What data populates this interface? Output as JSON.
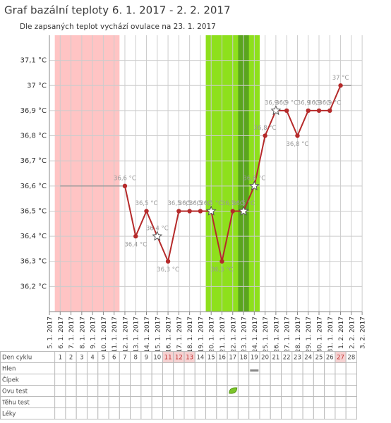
{
  "chart_data": {
    "type": "line",
    "title": "Graf bazální teploty 6. 1. 2017 - 2. 2. 2017",
    "subtitle": "Dle zapsaných teplot vychází ovulace na 23. 1. 2017",
    "categories": [
      "5. 1. 2017",
      "6. 1. 2017",
      "7. 1. 2017",
      "8. 1. 2017",
      "9. 1. 2017",
      "10. 1. 2017",
      "11. 1. 2017",
      "12. 1. 2017",
      "13. 1. 2017",
      "14. 1. 2017",
      "15. 1. 2017",
      "16. 1. 2017",
      "17. 1. 2017",
      "18. 1. 2017",
      "19. 1. 2017",
      "20. 1. 2017",
      "21. 1. 2017",
      "22. 1. 2017",
      "23. 1. 2017",
      "24. 1. 2017",
      "25. 1. 2017",
      "26. 1. 2017",
      "27. 1. 2017",
      "28. 1. 2017",
      "29. 1. 2017",
      "30. 1. 2017",
      "31. 1. 2017",
      "1. 2. 2017",
      "2. 2. 2017",
      "3. 2. 2017"
    ],
    "series": [
      {
        "color": "#999999",
        "values": [
          null,
          36.6,
          36.6,
          36.6,
          36.6,
          36.6,
          36.6,
          36.6,
          null,
          null,
          null,
          null,
          null,
          null,
          null,
          null,
          null,
          null,
          null,
          null,
          null,
          null,
          null,
          null,
          null,
          null,
          null,
          37.0,
          37.0,
          null
        ]
      },
      {
        "color": "#b52a2a",
        "values": [
          null,
          null,
          null,
          null,
          null,
          null,
          null,
          36.6,
          36.4,
          36.5,
          36.4,
          36.3,
          36.5,
          36.5,
          36.5,
          36.5,
          36.3,
          36.5,
          36.5,
          36.6,
          36.8,
          36.9,
          36.9,
          36.8,
          36.9,
          36.9,
          36.9,
          37.0,
          null,
          null
        ],
        "value_labels": [
          null,
          null,
          null,
          null,
          null,
          null,
          null,
          "36,6 °C",
          "36,4 °C",
          "36,5 °C",
          "36,4 °C",
          "36,3 °C",
          "36,5 °C",
          "36,5 °C",
          "36,5 °C",
          "36,5 °C",
          "36,3 °C",
          "36,5 °C",
          "36,5 °C",
          "36,6 °C",
          "36,8 °C",
          "36,9 °C",
          "36,9 °C",
          "36,8 °C",
          "36,9 °C",
          "36,9 °C",
          "36,9 °C",
          "37 °C",
          null,
          null
        ],
        "markers": [
          null,
          null,
          null,
          null,
          null,
          null,
          null,
          "circle",
          "circle",
          "circle",
          "star",
          "circle",
          "circle",
          "circle",
          "circle",
          "star",
          "circle",
          "circle",
          "star",
          "star",
          "circle",
          "star",
          "circle",
          "circle",
          "circle",
          "circle",
          "circle",
          "circle",
          null,
          null
        ]
      }
    ],
    "bands": [
      {
        "from": "6. 1. 2017",
        "to": "11. 1. 2017",
        "color": "#ffc4c4"
      },
      {
        "from": "20. 1. 2017",
        "to": "24. 1. 2017",
        "color": "#8ee01c"
      },
      {
        "from": "23. 1. 2017",
        "to": "23. 1. 2017",
        "color": "#5aa51e"
      }
    ],
    "ylim": [
      36.1,
      37.2
    ],
    "yticks": [
      {
        "value": 36.2,
        "label": "36,2 °C"
      },
      {
        "value": 36.3,
        "label": "36,3 °C"
      },
      {
        "value": 36.4,
        "label": "36,4 °C"
      },
      {
        "value": 36.5,
        "label": "36,5 °C"
      },
      {
        "value": 36.6,
        "label": "36,6 °C"
      },
      {
        "value": 36.7,
        "label": "36,7 °C"
      },
      {
        "value": 36.8,
        "label": "36,8 °C"
      },
      {
        "value": 36.9,
        "label": "36,9 °C"
      },
      {
        "value": 37.0,
        "label": "37 °C"
      },
      {
        "value": 37.1,
        "label": "37,1 °C"
      }
    ],
    "grid": true
  },
  "table": {
    "rows": [
      {
        "label": "Den cyklu",
        "cells": [
          1,
          2,
          3,
          4,
          5,
          6,
          7,
          8,
          9,
          10,
          11,
          12,
          13,
          14,
          15,
          16,
          17,
          18,
          19,
          20,
          21,
          22,
          23,
          24,
          25,
          26,
          27,
          28
        ],
        "highlighted": [
          false,
          false,
          false,
          false,
          false,
          false,
          false,
          false,
          false,
          false,
          true,
          true,
          true,
          false,
          false,
          false,
          false,
          false,
          false,
          false,
          false,
          false,
          false,
          false,
          false,
          false,
          true,
          false
        ]
      },
      {
        "label": "Hlen",
        "mark": "bar",
        "mark_day": 19
      },
      {
        "label": "Čípek"
      },
      {
        "label": "Ovu test",
        "mark": "leaf",
        "mark_day": 17
      },
      {
        "label": "Těhu test"
      },
      {
        "label": "Léky"
      }
    ]
  }
}
